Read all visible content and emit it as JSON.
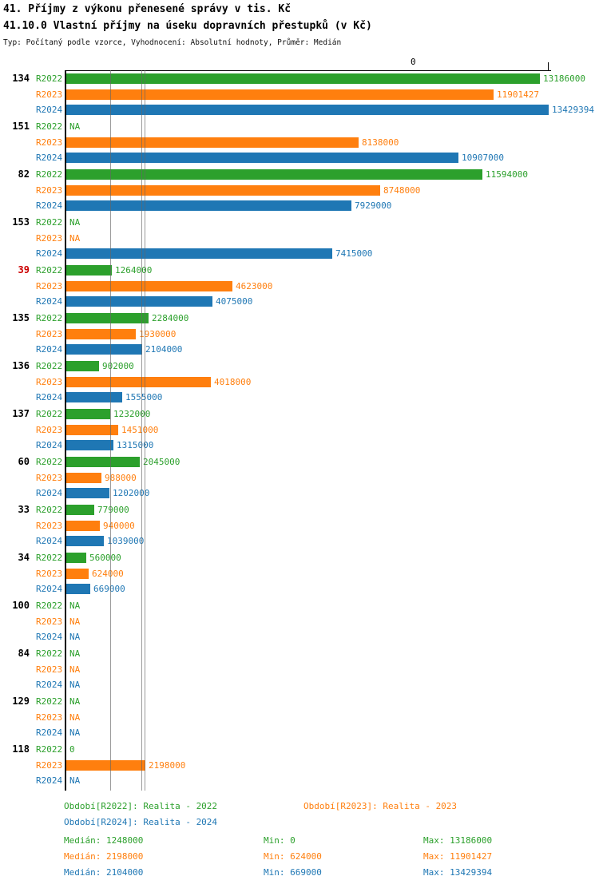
{
  "title": "41. Příjmy z výkonu přenesené správy v tis. Kč",
  "subtitle": "41.10.0 Vlastní příjmy na úseku dopravních přestupků (v Kč)",
  "meta": "Typ: Počítaný podle vzorce, Vyhodnocení: Absolutní hodnoty, Průměr: Medián",
  "axis": {
    "zero_label": "0"
  },
  "colors": {
    "green": "#2ca02c",
    "orange": "#ff7f0e",
    "blue": "#1f77b4",
    "highlight": "#cc0000",
    "median_line": "#666666",
    "axis": "#000000"
  },
  "chart_data": {
    "type": "bar",
    "orientation": "horizontal",
    "value_unit": "Kč",
    "max_value": 13429394,
    "na_text": "NA",
    "series": [
      {
        "label": "R2022",
        "color": "#2ca02c",
        "median": 1248000,
        "min": 0,
        "max": 13186000
      },
      {
        "label": "R2023",
        "color": "#ff7f0e",
        "median": 2198000,
        "min": 624000,
        "max": 11901427
      },
      {
        "label": "R2024",
        "color": "#1f77b4",
        "median": 2104000,
        "min": 669000,
        "max": 13429394
      }
    ],
    "groups": [
      {
        "id": "134",
        "highlight": false,
        "values": [
          13186000,
          11901427,
          13429394
        ]
      },
      {
        "id": "151",
        "highlight": false,
        "values": [
          "NA",
          8138000,
          10907000
        ]
      },
      {
        "id": "82",
        "highlight": false,
        "values": [
          11594000,
          8748000,
          7929000
        ]
      },
      {
        "id": "153",
        "highlight": false,
        "values": [
          "NA",
          "NA",
          7415000
        ]
      },
      {
        "id": "39",
        "highlight": true,
        "values": [
          1264000,
          4623000,
          4075000
        ]
      },
      {
        "id": "135",
        "highlight": false,
        "values": [
          2284000,
          1930000,
          2104000
        ]
      },
      {
        "id": "136",
        "highlight": false,
        "values": [
          902000,
          4018000,
          1555000
        ]
      },
      {
        "id": "137",
        "highlight": false,
        "values": [
          1232000,
          1451000,
          1315000
        ]
      },
      {
        "id": "60",
        "highlight": false,
        "values": [
          2045000,
          988000,
          1202000
        ]
      },
      {
        "id": "33",
        "highlight": false,
        "values": [
          779000,
          940000,
          1039000
        ]
      },
      {
        "id": "34",
        "highlight": false,
        "values": [
          560000,
          624000,
          669000
        ]
      },
      {
        "id": "100",
        "highlight": false,
        "values": [
          "NA",
          "NA",
          "NA"
        ]
      },
      {
        "id": "84",
        "highlight": false,
        "values": [
          "NA",
          "NA",
          "NA"
        ]
      },
      {
        "id": "129",
        "highlight": false,
        "values": [
          "NA",
          "NA",
          "NA"
        ]
      },
      {
        "id": "118",
        "highlight": false,
        "values": [
          0,
          2198000,
          "NA"
        ]
      }
    ]
  },
  "legend": {
    "period_r2022": "Období[R2022]: Realita - 2022",
    "period_r2023": "Období[R2023]: Realita - 2023",
    "period_r2024": "Období[R2024]: Realita - 2024",
    "median_r2022": "Medián: 1248000",
    "median_r2023": "Medián: 2198000",
    "median_r2024": "Medián: 2104000",
    "min_r2022": "Min: 0",
    "min_r2023": "Min: 624000",
    "min_r2024": "Min: 669000",
    "max_r2022": "Max: 13186000",
    "max_r2023": "Max: 11901427",
    "max_r2024": "Max: 13429394"
  }
}
